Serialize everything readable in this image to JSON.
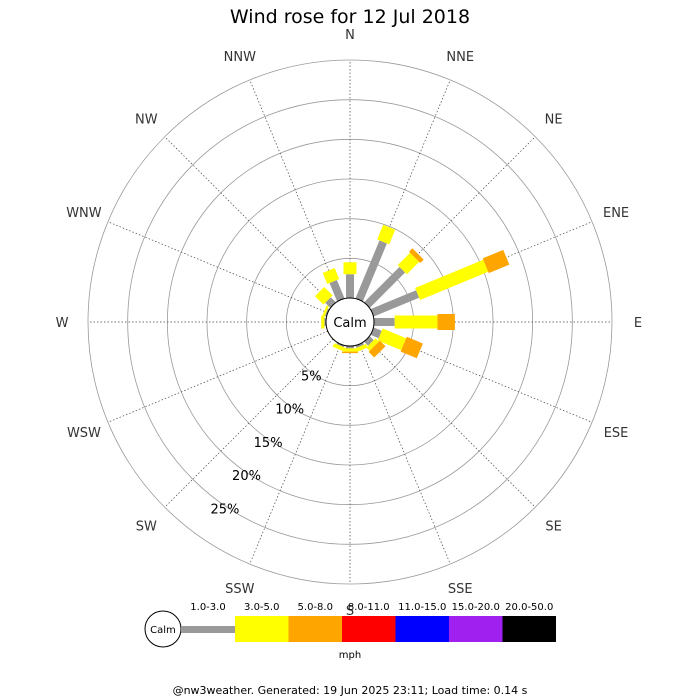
{
  "chart_data": {
    "type": "wind-rose",
    "title": "Wind rose for 12 Jul 2018",
    "center_label": "Calm",
    "directions": [
      "N",
      "NNE",
      "NE",
      "ENE",
      "E",
      "ESE",
      "SE",
      "SSE",
      "S",
      "SSW",
      "SW",
      "WSW",
      "W",
      "WNW",
      "NW",
      "NNW"
    ],
    "radial_ticks": [
      "5%",
      "10%",
      "15%",
      "20%",
      "25%"
    ],
    "radial_values": [
      5,
      10,
      15,
      20,
      25
    ],
    "radial_max": 30,
    "speed_bins": [
      {
        "label": "1.0-3.0",
        "color": "#999999"
      },
      {
        "label": "3.0-5.0",
        "color": "#ffff00"
      },
      {
        "label": "5.0-8.0",
        "color": "#ffa500"
      },
      {
        "label": "8.0-11.0",
        "color": "#ff0000"
      },
      {
        "label": "11.0-15.0",
        "color": "#0000ff"
      },
      {
        "label": "15.0-20.0",
        "color": "#a020f0"
      },
      {
        "label": "20.0-50.0",
        "color": "#000000"
      }
    ],
    "series": [
      {
        "direction": "N",
        "values": [
          3.0,
          1.5,
          0,
          0,
          0,
          0,
          0
        ]
      },
      {
        "direction": "NNE",
        "values": [
          7.9,
          2.0,
          0,
          0,
          0,
          0,
          0
        ]
      },
      {
        "direction": "NE",
        "values": [
          6.3,
          2.2,
          0.6,
          0,
          0,
          0,
          0
        ]
      },
      {
        "direction": "ENE",
        "values": [
          6.2,
          9.3,
          2.8,
          0,
          0,
          0,
          0
        ]
      },
      {
        "direction": "E",
        "values": [
          2.6,
          5.4,
          2.2,
          0,
          0,
          0,
          0
        ]
      },
      {
        "direction": "ESE",
        "values": [
          1.1,
          3.2,
          2.2,
          0,
          0,
          0,
          0
        ]
      },
      {
        "direction": "SE",
        "values": [
          0.7,
          0.6,
          1.0,
          0,
          0,
          0,
          0
        ]
      },
      {
        "direction": "SSE",
        "values": [
          0.3,
          0.5,
          0,
          0,
          0,
          0,
          0
        ]
      },
      {
        "direction": "S",
        "values": [
          0.3,
          0.4,
          0.2,
          0,
          0,
          0,
          0
        ]
      },
      {
        "direction": "SSW",
        "values": [
          0.2,
          0.5,
          0,
          0,
          0,
          0,
          0
        ]
      },
      {
        "direction": "SW",
        "values": [
          0,
          0,
          0,
          0,
          0,
          0,
          0
        ]
      },
      {
        "direction": "WSW",
        "values": [
          0,
          0,
          0,
          0,
          0,
          0,
          0
        ]
      },
      {
        "direction": "W",
        "values": [
          0.2,
          0.4,
          0,
          0,
          0,
          0,
          0
        ]
      },
      {
        "direction": "WNW",
        "values": [
          0.2,
          0.3,
          0,
          0,
          0,
          0,
          0
        ]
      },
      {
        "direction": "NW",
        "values": [
          0.9,
          1.5,
          0,
          0,
          0,
          0,
          0
        ]
      },
      {
        "direction": "NNW",
        "values": [
          2.5,
          1.5,
          0,
          0,
          0,
          0,
          0
        ]
      }
    ],
    "legend_unit": "mph",
    "legend_calm_label": "Calm",
    "footer": "@nw3weather.  Generated: 19 Jun 2025 23:11; Load time: 0.14 s"
  }
}
